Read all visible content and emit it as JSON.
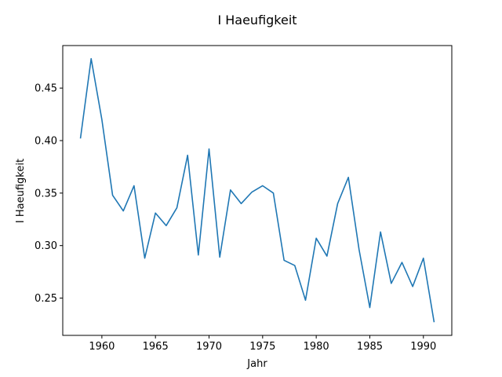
{
  "chart_data": {
    "type": "line",
    "title": "I Haeufigkeit",
    "xlabel": "Jahr",
    "ylabel": "I Haeufigkeit",
    "xlim": [
      1956.35,
      1992.65
    ],
    "ylim": [
      0.2145,
      0.4905
    ],
    "grid": false,
    "xticks": [
      1960,
      1965,
      1970,
      1975,
      1980,
      1985,
      1990
    ],
    "yticks": [
      0.25,
      0.3,
      0.35,
      0.4,
      0.45
    ],
    "xtick_labels": [
      "1960",
      "1965",
      "1970",
      "1975",
      "1980",
      "1985",
      "1990"
    ],
    "ytick_labels": [
      "0.25",
      "0.30",
      "0.35",
      "0.40",
      "0.45"
    ],
    "series": [
      {
        "color": "#1f77b4",
        "x": [
          1958,
          1959,
          1960,
          1961,
          1962,
          1963,
          1964,
          1965,
          1966,
          1967,
          1968,
          1969,
          1970,
          1971,
          1972,
          1973,
          1974,
          1975,
          1976,
          1977,
          1978,
          1979,
          1980,
          1981,
          1982,
          1983,
          1984,
          1985,
          1986,
          1987,
          1988,
          1989,
          1990,
          1991
        ],
        "y": [
          0.402,
          0.478,
          0.42,
          0.348,
          0.333,
          0.357,
          0.288,
          0.331,
          0.319,
          0.336,
          0.386,
          0.291,
          0.392,
          0.289,
          0.353,
          0.34,
          0.351,
          0.357,
          0.35,
          0.286,
          0.281,
          0.248,
          0.307,
          0.29,
          0.34,
          0.365,
          0.296,
          0.241,
          0.313,
          0.264,
          0.284,
          0.261,
          0.288,
          0.227
        ]
      }
    ]
  }
}
